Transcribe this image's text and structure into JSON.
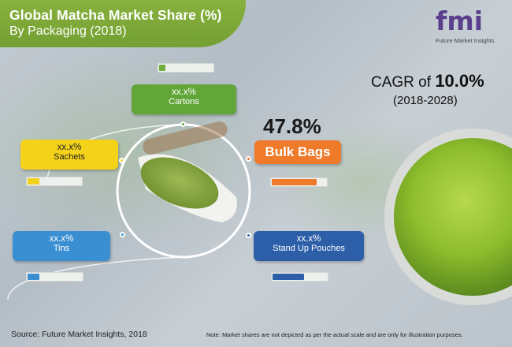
{
  "title": {
    "line1": "Global Matcha Market Share (%)",
    "line2": "By Packaging (2018)"
  },
  "logo": {
    "text": "fmi",
    "subtitle": "Future Market Insights"
  },
  "cagr": {
    "prefix": "CAGR of ",
    "value": "10.0%",
    "period": "(2018-2028)"
  },
  "highlight": {
    "share": "47.8%"
  },
  "chart_data": {
    "type": "pie",
    "title": "Global Matcha Market Share (%) By Packaging (2018)",
    "segments": [
      {
        "label": "Cartons",
        "value_label": "xx.x%",
        "color": "#6fae3c",
        "fill_fraction": 0.12
      },
      {
        "label": "Sachets",
        "value_label": "xx.x%",
        "color": "#f2d21b",
        "fill_fraction": 0.22
      },
      {
        "label": "Bulk Bags",
        "value_label": "47.8%",
        "value": 47.8,
        "color": "#ee7a2a",
        "fill_fraction": 0.82
      },
      {
        "label": "Tins",
        "value_label": "xx.x%",
        "color": "#3a8fd2",
        "fill_fraction": 0.22
      },
      {
        "label": "Stand Up Pouches",
        "value_label": "xx.x%",
        "color": "#2c5fa8",
        "fill_fraction": 0.58
      }
    ]
  },
  "footer": {
    "source": "Source: Future Market Insights, 2018",
    "note": "Note: Market shares are not depicted as per the actual scale and are only for illustration purposes."
  },
  "colors": {
    "brand_green": "#7aa83a",
    "accent_orange": "#ee7a2a",
    "logo_purple": "#5a3f8c"
  }
}
